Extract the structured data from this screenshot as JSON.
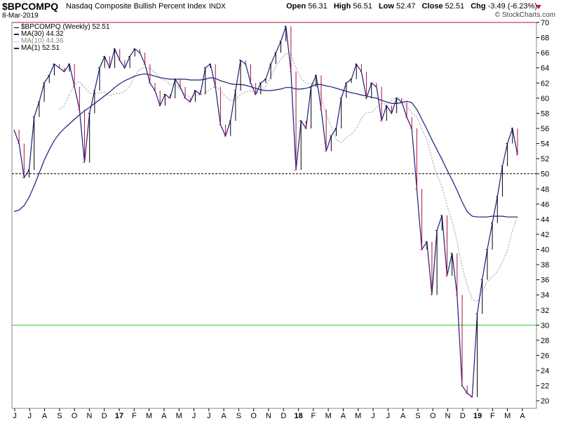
{
  "header": {
    "symbol": "$BPCOMPQ",
    "description": "Nasdaq Composite Bullish Percent Index",
    "exchange": "INDX",
    "date": "8-Mar-2019",
    "copyright": "© StockCharts.com",
    "open_label": "Open",
    "open": "56.31",
    "high_label": "High",
    "high": "56.51",
    "low_label": "Low",
    "low": "52.47",
    "close_label": "Close",
    "close": "52.51",
    "chg_label": "Chg",
    "chg": "-3.49 (-6.23%)",
    "chg_icon": "down-triangle-icon"
  },
  "legend": {
    "price": "$BPCOMPQ (Weekly) 52.51",
    "ma30": "MA(30) 44.32",
    "ma10": "MA(10) 44.36",
    "ma1": "MA(1) 52.51"
  },
  "colors": {
    "up": "#000000",
    "down": "#b0103a",
    "ma_line": "#1a1a80",
    "ma10": "#999999",
    "oversold_line": "#33cc33",
    "overbought_line": "#b0103a"
  },
  "chart_data": {
    "type": "line",
    "ylim": [
      19,
      70
    ],
    "y_ticks": [
      20,
      22,
      24,
      26,
      28,
      30,
      32,
      34,
      36,
      38,
      40,
      42,
      44,
      46,
      48,
      50,
      52,
      54,
      56,
      58,
      60,
      62,
      64,
      66,
      68,
      70
    ],
    "x_ticks": [
      "J",
      "J",
      "A",
      "S",
      "O",
      "N",
      "D",
      "17",
      "F",
      "M",
      "A",
      "M",
      "J",
      "J",
      "A",
      "S",
      "O",
      "N",
      "D",
      "18",
      "F",
      "M",
      "A",
      "M",
      "J",
      "J",
      "A",
      "S",
      "O",
      "N",
      "D",
      "19",
      "F",
      "M",
      "A"
    ],
    "reference_lines": [
      {
        "value": 70,
        "style": "solid",
        "color": "#b0103a"
      },
      {
        "value": 50,
        "style": "dashed",
        "color": "#000000"
      },
      {
        "value": 30,
        "style": "solid",
        "color": "#33cc33"
      }
    ],
    "weekly_close": [
      55.8,
      54.0,
      49.5,
      50.5,
      57.5,
      59.5,
      62.0,
      63.0,
      64.5,
      64.0,
      63.5,
      64.5,
      61.5,
      58.5,
      51.5,
      58.0,
      61.0,
      64.0,
      65.5,
      64.0,
      66.5,
      65.0,
      64.0,
      65.5,
      66.5,
      66.0,
      64.5,
      62.0,
      61.0,
      59.0,
      60.5,
      60.0,
      62.5,
      61.5,
      60.0,
      59.5,
      61.0,
      60.5,
      64.0,
      64.5,
      61.5,
      56.5,
      55.0,
      57.0,
      61.0,
      65.0,
      64.5,
      62.0,
      60.5,
      62.0,
      62.5,
      64.5,
      66.0,
      67.5,
      69.5,
      63.5,
      50.5,
      57.0,
      56.0,
      61.5,
      63.0,
      58.5,
      53.0,
      55.0,
      56.0,
      60.0,
      62.0,
      62.5,
      64.5,
      63.5,
      60.0,
      62.0,
      61.5,
      57.0,
      59.0,
      58.0,
      60.0,
      59.5,
      57.5,
      56.0,
      48.0,
      40.0,
      41.0,
      34.0,
      42.5,
      44.5,
      36.5,
      39.5,
      34.0,
      22.0,
      21.0,
      20.5,
      31.5,
      36.0,
      40.0,
      43.5,
      47.0,
      51.0,
      54.0,
      56.0,
      52.5
    ],
    "series": [
      {
        "name": "MA(30)",
        "values": [
          45.0,
          45.2,
          45.8,
          46.9,
          48.4,
          50.1,
          51.8,
          53.2,
          54.4,
          55.3,
          56.0,
          56.6,
          57.2,
          57.8,
          58.3,
          58.8,
          59.3,
          59.8,
          60.3,
          60.8,
          61.4,
          61.9,
          62.3,
          62.6,
          62.9,
          63.1,
          63.2,
          63.1,
          62.9,
          62.7,
          62.6,
          62.5,
          62.5,
          62.5,
          62.5,
          62.4,
          62.4,
          62.4,
          62.5,
          62.7,
          62.6,
          62.3,
          62.1,
          61.9,
          61.8,
          61.8,
          61.7,
          61.5,
          61.3,
          61.1,
          61.0,
          61.0,
          61.1,
          61.2,
          61.4,
          61.4,
          61.2,
          61.2,
          61.3,
          61.5,
          61.8,
          61.8,
          61.6,
          61.5,
          61.3,
          61.1,
          60.9,
          60.7,
          60.6,
          60.4,
          60.3,
          60.1,
          60.0,
          59.7,
          59.5,
          59.3,
          59.3,
          59.4,
          59.6,
          59.4,
          58.5,
          57.2,
          55.9,
          54.5,
          53.2,
          51.9,
          50.5,
          49.2,
          47.8,
          46.3,
          45.0,
          44.4,
          44.3,
          44.3,
          44.3,
          44.4,
          44.4,
          44.4,
          44.3,
          44.3,
          44.3
        ]
      },
      {
        "name": "MA(10)",
        "values": [
          null,
          null,
          null,
          null,
          null,
          null,
          null,
          null,
          null,
          58.5,
          59.0,
          60.5,
          61.7,
          62.2,
          61.4,
          60.7,
          60.6,
          60.7,
          60.8,
          60.3,
          60.6,
          60.6,
          60.9,
          61.6,
          63.0,
          63.8,
          64.1,
          63.9,
          63.4,
          62.7,
          62.3,
          61.8,
          61.8,
          61.2,
          60.5,
          60.1,
          60.4,
          60.4,
          60.7,
          61.2,
          61.5,
          61.0,
          60.2,
          59.7,
          59.8,
          60.5,
          60.8,
          61.0,
          60.6,
          60.8,
          61.6,
          62.9,
          64.2,
          65.1,
          65.9,
          65.8,
          64.0,
          62.6,
          62.0,
          61.9,
          61.8,
          60.3,
          57.8,
          56.2,
          54.5,
          54.1,
          54.8,
          55.2,
          56.0,
          57.3,
          58.1,
          58.1,
          58.8,
          59.3,
          59.2,
          59.7,
          60.1,
          59.8,
          58.9,
          58.1,
          57.5,
          55.9,
          54.5,
          52.0,
          49.8,
          48.3,
          45.8,
          43.8,
          41.1,
          37.7,
          35.3,
          33.4,
          33.1,
          34.4,
          35.8,
          36.4,
          37.1,
          38.3,
          39.9,
          42.5,
          44.4
        ]
      },
      {
        "name": "MA(1)",
        "values": [
          55.8,
          54.0,
          49.5,
          50.5,
          57.5,
          59.5,
          62.0,
          63.0,
          64.5,
          64.0,
          63.5,
          64.5,
          61.5,
          58.5,
          51.5,
          58.0,
          61.0,
          64.0,
          65.5,
          64.0,
          66.5,
          65.0,
          64.0,
          65.5,
          66.5,
          66.0,
          64.5,
          62.0,
          61.0,
          59.0,
          60.5,
          60.0,
          62.5,
          61.5,
          60.0,
          59.5,
          61.0,
          60.5,
          64.0,
          64.5,
          61.5,
          56.5,
          55.0,
          57.0,
          61.0,
          65.0,
          64.5,
          62.0,
          60.5,
          62.0,
          62.5,
          64.5,
          66.0,
          67.5,
          69.5,
          63.5,
          50.5,
          57.0,
          56.0,
          61.5,
          63.0,
          58.5,
          53.0,
          55.0,
          56.0,
          60.0,
          62.0,
          62.5,
          64.5,
          63.5,
          60.0,
          62.0,
          61.5,
          57.0,
          59.0,
          58.0,
          60.0,
          59.5,
          57.5,
          56.0,
          48.0,
          40.0,
          41.0,
          34.0,
          42.5,
          44.5,
          36.5,
          39.5,
          34.0,
          22.0,
          21.0,
          20.5,
          31.5,
          36.0,
          40.0,
          43.5,
          47.0,
          51.0,
          54.0,
          56.0,
          52.5
        ]
      }
    ]
  }
}
